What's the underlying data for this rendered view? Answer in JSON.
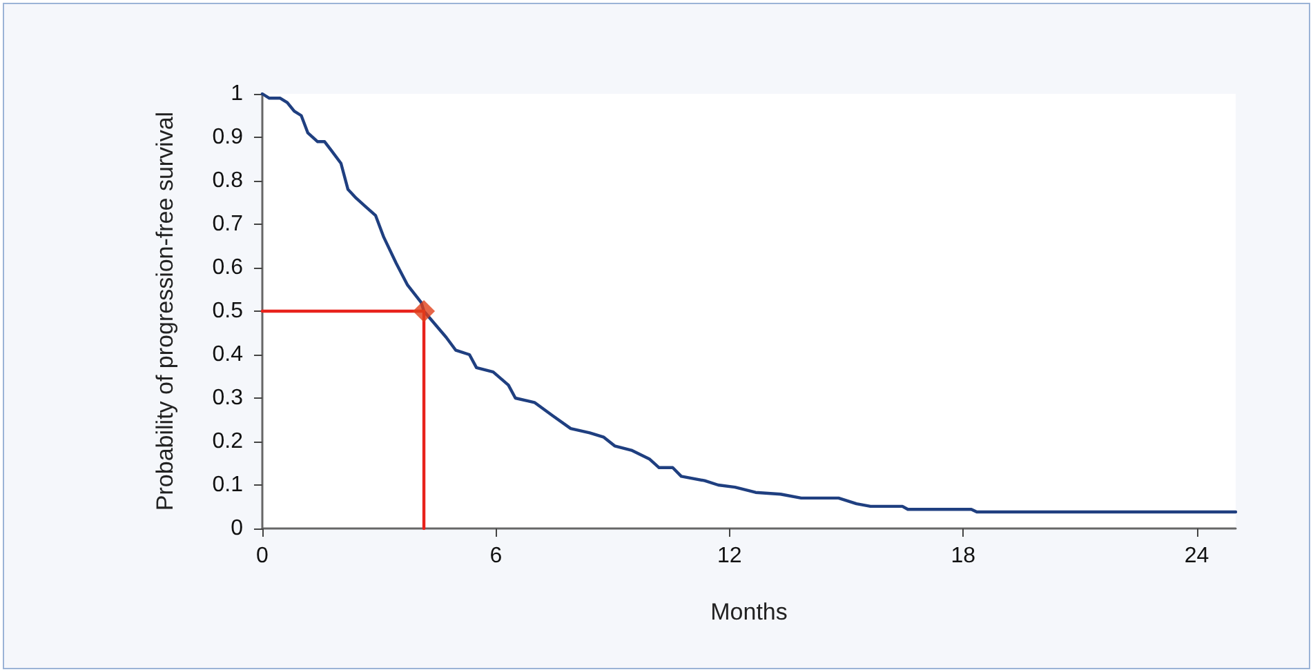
{
  "chart_data": {
    "type": "line",
    "xlabel": "Months",
    "ylabel": "Probability of progression-free survival",
    "xlim": [
      0,
      25
    ],
    "xticks": [
      0,
      6,
      12,
      18,
      24
    ],
    "ylim": [
      0,
      1
    ],
    "yticks": [
      0,
      0.1,
      0.2,
      0.3,
      0.4,
      0.5,
      0.6,
      0.7,
      0.8,
      0.9,
      1
    ],
    "grid": false,
    "series": [
      {
        "color": "#1f3f80",
        "marker": "none",
        "x": [
          0,
          0.18,
          0.46,
          0.64,
          0.82,
          1.0,
          1.17,
          1.42,
          1.6,
          1.77,
          2.02,
          2.2,
          2.41,
          2.66,
          2.91,
          3.12,
          3.44,
          3.73,
          4.08,
          4.15,
          4.72,
          4.97,
          5.32,
          5.5,
          5.93,
          6.32,
          6.5,
          6.99,
          7.45,
          7.92,
          8.41,
          8.77,
          9.05,
          9.48,
          9.94,
          10.19,
          10.54,
          10.76,
          11.36,
          11.71,
          12.14,
          12.67,
          13.31,
          13.84,
          14.8,
          15.26,
          15.62,
          16.44,
          16.58,
          18.21,
          18.35,
          25
        ],
        "values": [
          1.0,
          0.99,
          0.99,
          0.98,
          0.96,
          0.95,
          0.91,
          0.89,
          0.89,
          0.87,
          0.84,
          0.78,
          0.76,
          0.74,
          0.72,
          0.67,
          0.61,
          0.56,
          0.52,
          0.5,
          0.44,
          0.41,
          0.4,
          0.37,
          0.36,
          0.33,
          0.3,
          0.29,
          0.26,
          0.23,
          0.22,
          0.21,
          0.19,
          0.18,
          0.16,
          0.14,
          0.14,
          0.12,
          0.11,
          0.1,
          0.095,
          0.083,
          0.079,
          0.07,
          0.07,
          0.057,
          0.051,
          0.051,
          0.044,
          0.044,
          0.038,
          0.038
        ]
      },
      {
        "color": "#e8221b",
        "marker": "none",
        "x": [
          0,
          4.15,
          4.15
        ],
        "values": [
          0.5,
          0.5,
          0
        ]
      },
      {
        "type": "scatter",
        "color": "#e0401a",
        "marker": "diamond",
        "x": [
          4.15
        ],
        "values": [
          0.5
        ]
      }
    ]
  }
}
